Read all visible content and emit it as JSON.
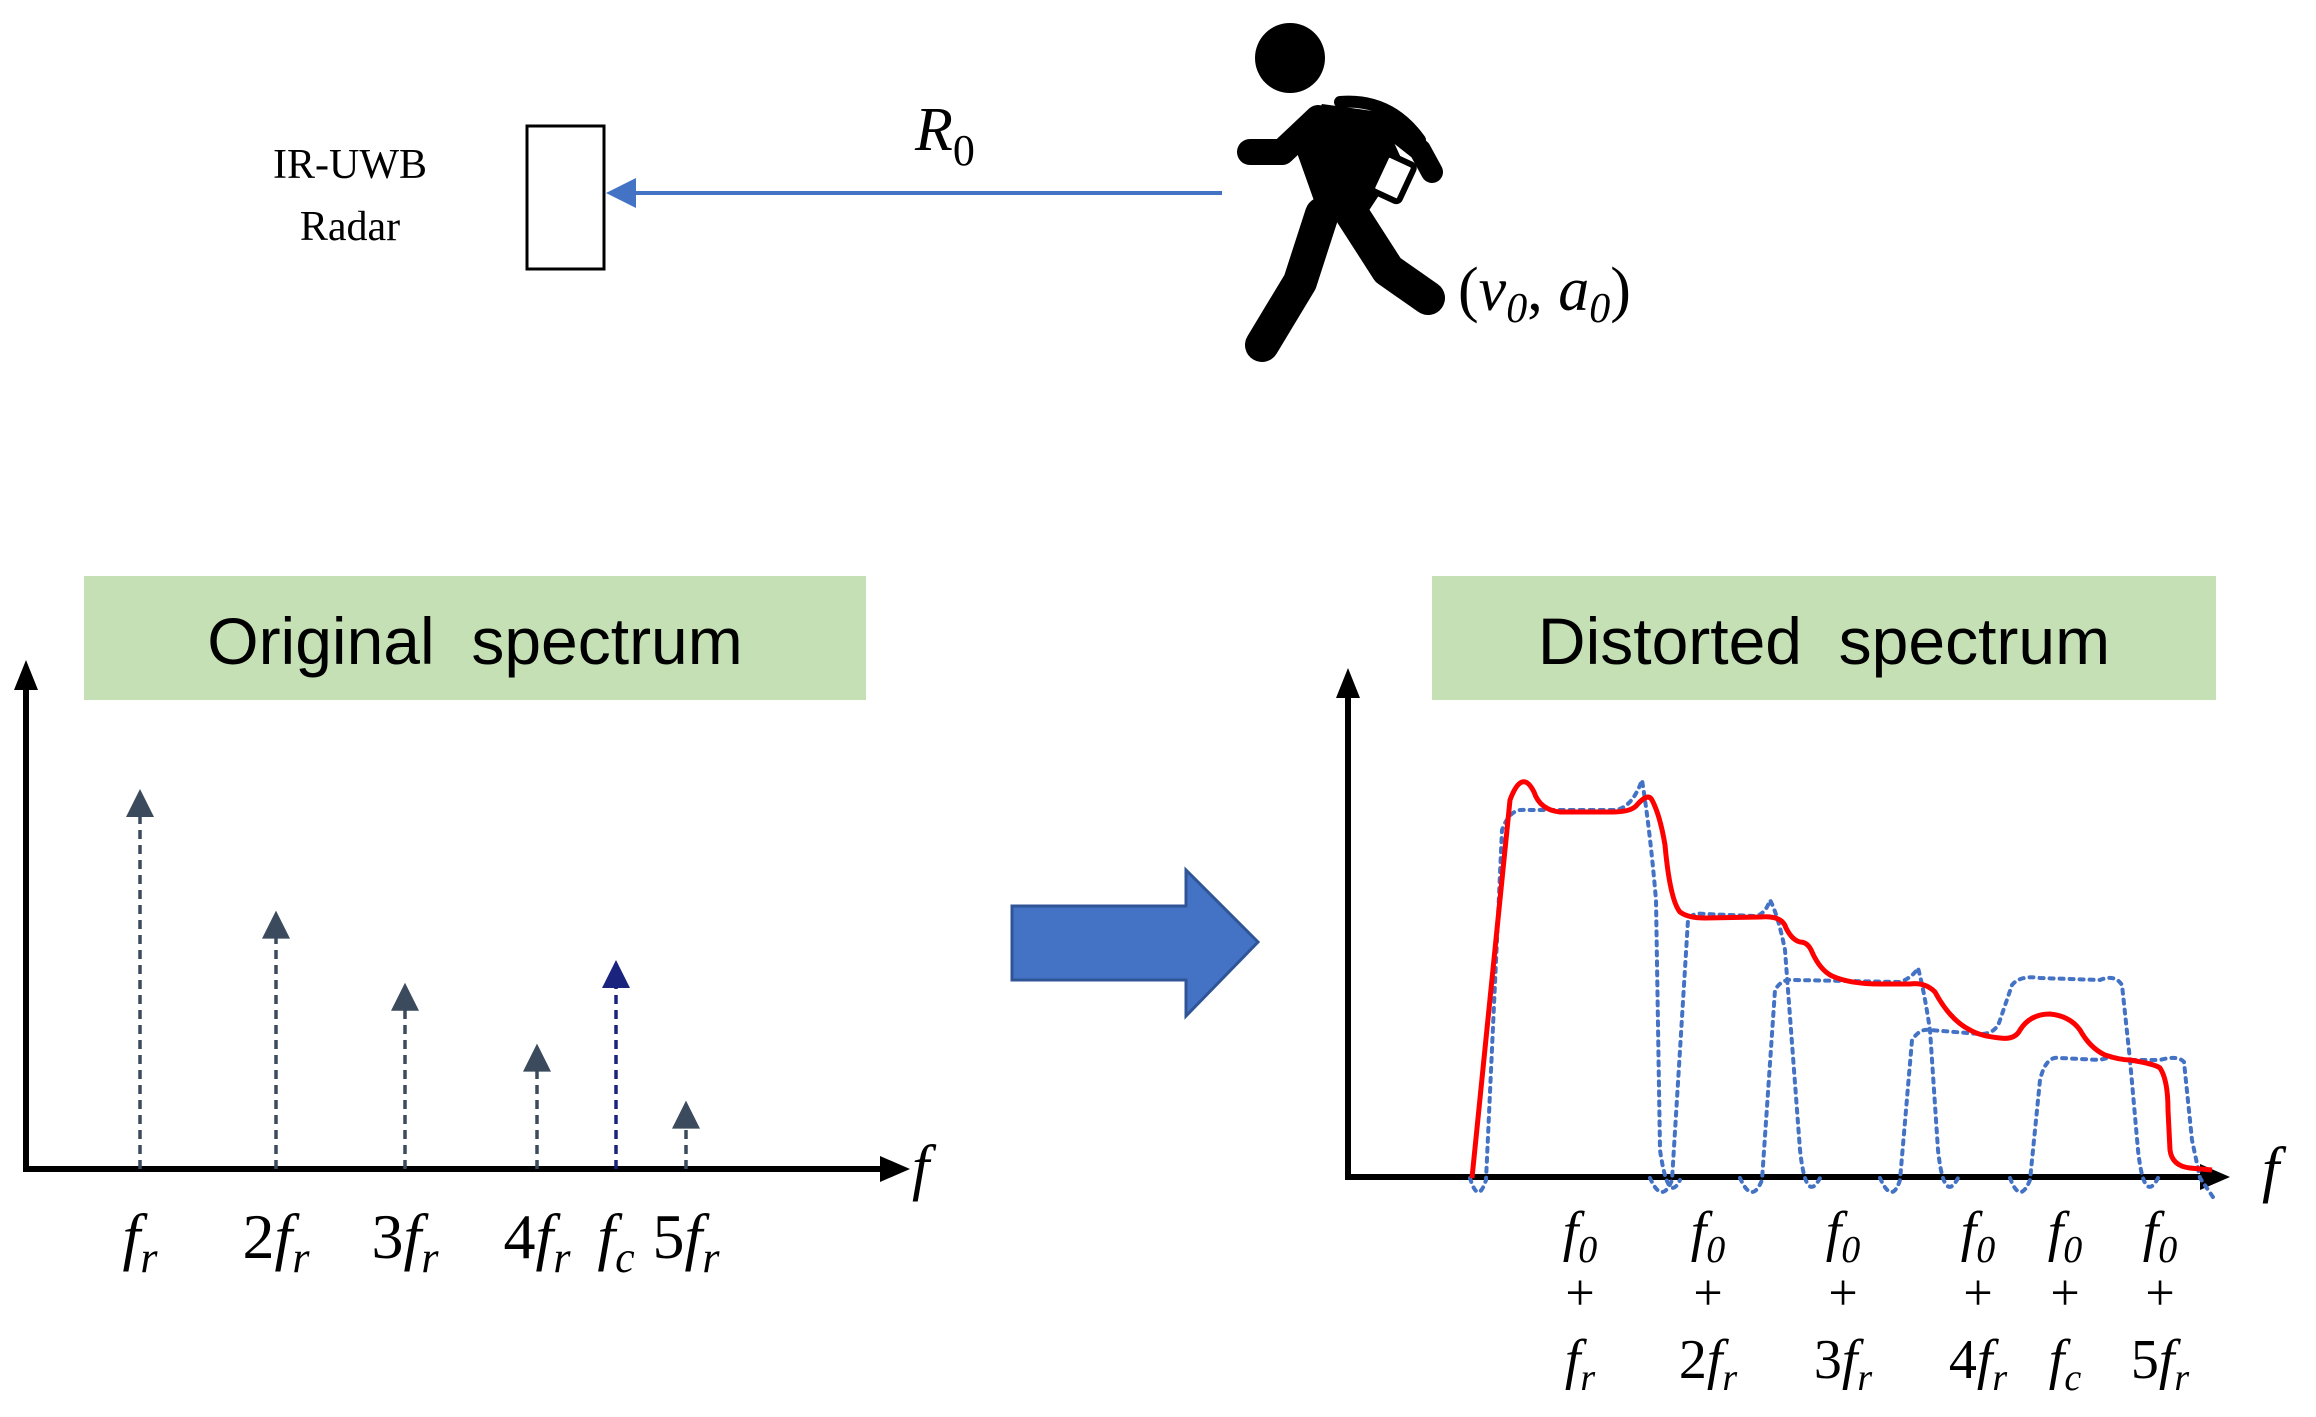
{
  "radar": {
    "label_line1": "IR-UWB",
    "label_line2": "Radar"
  },
  "range": {
    "symbol": "R",
    "subscript": "0",
    "arrow_color": "#4472C4"
  },
  "target": {
    "icon": "running-person-icon",
    "open_paren": "(",
    "v_symbol": "v",
    "v_sub": "0",
    "comma": ", ",
    "a_symbol": "a",
    "a_sub": "0",
    "close_paren": ")"
  },
  "transition_arrow": {
    "icon": "right-arrow-icon",
    "color": "#4472C4"
  },
  "original_panel": {
    "title": "Original  spectrum",
    "title_bg": "#C5E0B4",
    "axis_label": "f",
    "stem_color": "#3B4A5C",
    "carrier_color": "#1A237E",
    "stems": [
      {
        "coef": "",
        "sym": "f",
        "sub": "r",
        "amplitude": 1.0,
        "carrier": false
      },
      {
        "coef": "2",
        "sym": "f",
        "sub": "r",
        "amplitude": 0.68,
        "carrier": false
      },
      {
        "coef": "3",
        "sym": "f",
        "sub": "r",
        "amplitude": 0.49,
        "carrier": false
      },
      {
        "coef": "4",
        "sym": "f",
        "sub": "r",
        "amplitude": 0.33,
        "carrier": false
      },
      {
        "coef": "",
        "sym": "f",
        "sub": "c",
        "amplitude": 0.55,
        "carrier": true
      },
      {
        "coef": "5",
        "sym": "f",
        "sub": "r",
        "amplitude": 0.18,
        "carrier": false
      }
    ]
  },
  "distorted_panel": {
    "title": "Distorted  spectrum",
    "title_bg": "#C5E0B4",
    "axis_label": "f",
    "curve_color": "#FF0000",
    "dotted_color": "#4472C4",
    "ticks": [
      {
        "top_sym": "f",
        "top_sub": "0",
        "plus": "+",
        "coef": "",
        "sym": "f",
        "sub": "r"
      },
      {
        "top_sym": "f",
        "top_sub": "0",
        "plus": "+",
        "coef": "2",
        "sym": "f",
        "sub": "r"
      },
      {
        "top_sym": "f",
        "top_sub": "0",
        "plus": "+",
        "coef": "3",
        "sym": "f",
        "sub": "r"
      },
      {
        "top_sym": "f",
        "top_sub": "0",
        "plus": "+",
        "coef": "4",
        "sym": "f",
        "sub": "r"
      },
      {
        "top_sym": "f",
        "top_sub": "0",
        "plus": "+",
        "coef": "",
        "sym": "f",
        "sub": "c"
      },
      {
        "top_sym": "f",
        "top_sub": "0",
        "plus": "+",
        "coef": "5",
        "sym": "f",
        "sub": "r"
      }
    ]
  }
}
